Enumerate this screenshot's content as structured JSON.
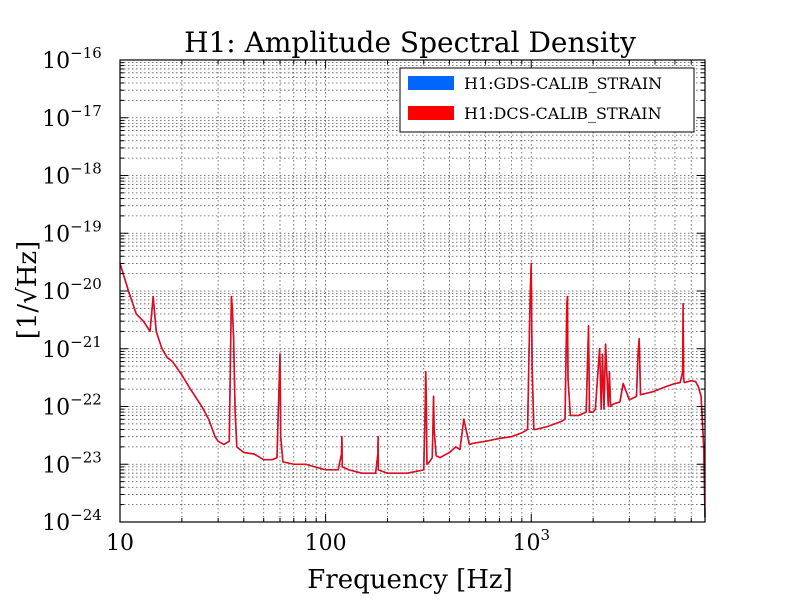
{
  "chart_data": {
    "type": "line",
    "title": "H1: Amplitude Spectral Density",
    "xlabel": "Frequency [Hz]",
    "ylabel": "[1/√Hz]",
    "xscale": "log",
    "yscale": "log",
    "xlim": [
      10,
      7000
    ],
    "ylim": [
      1e-24,
      1e-16
    ],
    "grid": true,
    "legend_position": "top-right",
    "x_tick_labels": [
      {
        "value": 10,
        "label": "10"
      },
      {
        "value": 100,
        "label": "100"
      },
      {
        "value": 1000,
        "label": "10",
        "exponent": "3"
      }
    ],
    "y_tick_labels": [
      {
        "value": 1e-24,
        "base": "10",
        "exponent": "−24"
      },
      {
        "value": 1e-23,
        "base": "10",
        "exponent": "−23"
      },
      {
        "value": 1e-22,
        "base": "10",
        "exponent": "−22"
      },
      {
        "value": 1e-21,
        "base": "10",
        "exponent": "−21"
      },
      {
        "value": 1e-20,
        "base": "10",
        "exponent": "−20"
      },
      {
        "value": 1e-19,
        "base": "10",
        "exponent": "−19"
      },
      {
        "value": 1e-18,
        "base": "10",
        "exponent": "−18"
      },
      {
        "value": 1e-17,
        "base": "10",
        "exponent": "−17"
      },
      {
        "value": 1e-16,
        "base": "10",
        "exponent": "−16"
      }
    ],
    "series": [
      {
        "name": "H1:GDS-CALIB_STRAIN",
        "color": "#0066ff",
        "x": [
          10,
          11,
          12,
          13,
          14,
          14.5,
          15,
          16,
          17,
          18,
          20,
          22,
          25,
          27,
          29,
          30,
          32,
          34,
          34.8,
          35.2,
          35.7,
          36.3,
          37,
          40,
          45,
          50,
          55,
          58,
          59.5,
          60,
          60.5,
          62,
          70,
          80,
          100,
          115,
          119.5,
          120,
          120.5,
          130,
          150,
          175,
          179.5,
          180,
          180.5,
          200,
          250,
          300,
          305,
          307,
          309,
          311,
          320,
          330,
          333,
          335,
          337,
          345,
          360,
          400,
          430,
          450,
          470,
          500,
          520,
          600,
          700,
          800,
          900,
          960,
          980,
          990,
          1000,
          1010,
          1030,
          1050,
          1200,
          1400,
          1460,
          1490,
          1500,
          1510,
          1550,
          1700,
          1850,
          1900,
          1920,
          2000,
          2050,
          2150,
          2190,
          2220,
          2260,
          2300,
          2370,
          2400,
          2430,
          2500,
          2700,
          2800,
          3000,
          3250,
          3300,
          3350,
          3400,
          3900,
          4500,
          5000,
          5300,
          5450,
          5480,
          5510,
          5550,
          5800,
          6000,
          6300,
          6500,
          6700,
          6900,
          7000
        ],
        "y": [
          3e-20,
          1e-20,
          4e-21,
          3e-21,
          2e-21,
          8e-21,
          2e-21,
          1e-21,
          7e-22,
          6e-22,
          3.5e-22,
          2e-22,
          1e-22,
          6e-23,
          3e-23,
          2.5e-23,
          2.2e-23,
          2.5e-23,
          8e-21,
          5e-21,
          1.5e-21,
          8e-23,
          2e-23,
          1.6e-23,
          1.5e-23,
          1.2e-23,
          1.2e-23,
          1.3e-23,
          3e-22,
          8e-22,
          3e-23,
          1.1e-23,
          1e-23,
          1e-23,
          8e-24,
          8e-24,
          1.5e-23,
          3e-23,
          9e-24,
          8e-24,
          7e-24,
          7e-24,
          1.5e-23,
          3e-23,
          8e-24,
          7e-24,
          7e-24,
          8e-24,
          1e-22,
          4e-22,
          1e-22,
          1e-23,
          1.1e-23,
          1.3e-23,
          5e-23,
          1.5e-22,
          4e-23,
          1.4e-23,
          1.3e-23,
          1.6e-23,
          2e-23,
          1.8e-23,
          6e-23,
          2.2e-23,
          2.3e-23,
          2.5e-23,
          2.8e-23,
          3e-23,
          3.5e-23,
          4e-23,
          2e-21,
          1e-20,
          3e-20,
          5e-22,
          4e-23,
          4e-23,
          4.5e-23,
          5.5e-23,
          6e-23,
          6e-21,
          8e-21,
          3e-22,
          7e-23,
          7e-23,
          8e-23,
          2.5e-21,
          8e-23,
          8e-23,
          9e-23,
          1e-21,
          9e-23,
          8e-22,
          9e-23,
          1.2e-21,
          1e-22,
          4e-22,
          1e-22,
          1.1e-22,
          1.2e-22,
          2.5e-22,
          1.3e-22,
          1.5e-22,
          7e-22,
          1.5e-21,
          1.6e-22,
          1.8e-22,
          2.2e-22,
          2.5e-22,
          2.6e-22,
          4e-22,
          6e-21,
          3e-22,
          2.6e-22,
          2.7e-22,
          2.8e-22,
          2.7e-22,
          2.2e-22,
          1.5e-22,
          2e-23,
          1.2e-24
        ]
      },
      {
        "name": "H1:DCS-CALIB_STRAIN",
        "color": "#ff0000",
        "x": [
          10,
          11,
          12,
          13,
          14,
          14.5,
          15,
          16,
          17,
          18,
          20,
          22,
          25,
          27,
          29,
          30,
          32,
          34,
          34.8,
          35.2,
          35.7,
          36.3,
          37,
          40,
          45,
          50,
          55,
          58,
          59.5,
          60,
          60.5,
          62,
          70,
          80,
          100,
          115,
          119.5,
          120,
          120.5,
          130,
          150,
          175,
          179.5,
          180,
          180.5,
          200,
          250,
          300,
          305,
          307,
          309,
          311,
          320,
          330,
          333,
          335,
          337,
          345,
          360,
          400,
          430,
          450,
          470,
          500,
          520,
          600,
          700,
          800,
          900,
          960,
          980,
          990,
          1000,
          1010,
          1030,
          1050,
          1200,
          1400,
          1460,
          1490,
          1500,
          1510,
          1550,
          1700,
          1850,
          1900,
          1920,
          2000,
          2050,
          2150,
          2190,
          2220,
          2260,
          2300,
          2370,
          2400,
          2430,
          2500,
          2700,
          2800,
          3000,
          3250,
          3300,
          3350,
          3400,
          3900,
          4500,
          5000,
          5300,
          5450,
          5480,
          5510,
          5550,
          5800,
          6000,
          6300,
          6500,
          6700,
          6900,
          7000
        ],
        "y": [
          3e-20,
          1e-20,
          4e-21,
          3e-21,
          2e-21,
          8e-21,
          2e-21,
          1e-21,
          7e-22,
          6e-22,
          3.5e-22,
          2e-22,
          1e-22,
          6e-23,
          3e-23,
          2.5e-23,
          2.2e-23,
          2.5e-23,
          8e-21,
          5e-21,
          1.5e-21,
          8e-23,
          2e-23,
          1.6e-23,
          1.5e-23,
          1.2e-23,
          1.2e-23,
          1.3e-23,
          3e-22,
          8e-22,
          3e-23,
          1.1e-23,
          1e-23,
          1e-23,
          8e-24,
          8e-24,
          1.5e-23,
          3e-23,
          9e-24,
          8e-24,
          7e-24,
          7e-24,
          1.5e-23,
          3e-23,
          8e-24,
          7e-24,
          7e-24,
          8e-24,
          1e-22,
          4e-22,
          1e-22,
          1e-23,
          1.1e-23,
          1.3e-23,
          5e-23,
          1.5e-22,
          4e-23,
          1.4e-23,
          1.3e-23,
          1.6e-23,
          2e-23,
          1.8e-23,
          6e-23,
          2.2e-23,
          2.3e-23,
          2.5e-23,
          2.8e-23,
          3e-23,
          3.5e-23,
          4e-23,
          2e-21,
          1e-20,
          3e-20,
          5e-22,
          4e-23,
          4e-23,
          4.5e-23,
          5.5e-23,
          6e-23,
          6e-21,
          8e-21,
          3e-22,
          7e-23,
          7e-23,
          8e-23,
          2.5e-21,
          8e-23,
          8e-23,
          9e-23,
          1e-21,
          9e-23,
          8e-22,
          9e-23,
          1.2e-21,
          1e-22,
          4e-22,
          1e-22,
          1.1e-22,
          1.2e-22,
          2.5e-22,
          1.3e-22,
          1.5e-22,
          7e-22,
          1.5e-21,
          1.6e-22,
          1.8e-22,
          2.2e-22,
          2.5e-22,
          2.6e-22,
          4e-22,
          6e-21,
          3e-22,
          2.6e-22,
          2.7e-22,
          2.8e-22,
          2.7e-22,
          2.2e-22,
          1.5e-22,
          2e-23,
          1.2e-24
        ]
      }
    ]
  }
}
